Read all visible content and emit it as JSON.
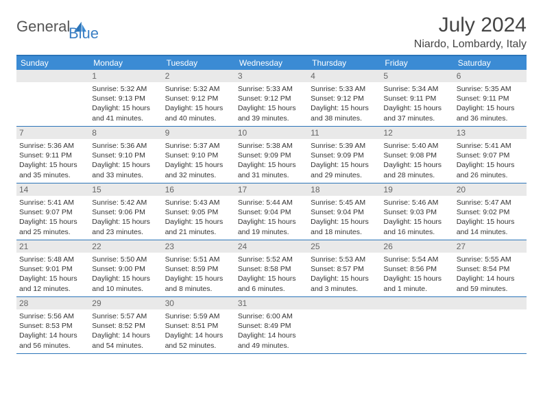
{
  "header": {
    "logo_general": "General",
    "logo_blue": "Blue",
    "month_title": "July 2024",
    "location": "Niardo, Lombardy, Italy"
  },
  "colors": {
    "header_bar": "#3b8bd4",
    "border": "#2a74b8",
    "day_num_bg": "#e9e9e9",
    "text": "#333333"
  },
  "weekdays": [
    "Sunday",
    "Monday",
    "Tuesday",
    "Wednesday",
    "Thursday",
    "Friday",
    "Saturday"
  ],
  "weeks": [
    [
      null,
      {
        "n": "1",
        "sr": "Sunrise: 5:32 AM",
        "ss": "Sunset: 9:13 PM",
        "d1": "Daylight: 15 hours",
        "d2": "and 41 minutes."
      },
      {
        "n": "2",
        "sr": "Sunrise: 5:32 AM",
        "ss": "Sunset: 9:12 PM",
        "d1": "Daylight: 15 hours",
        "d2": "and 40 minutes."
      },
      {
        "n": "3",
        "sr": "Sunrise: 5:33 AM",
        "ss": "Sunset: 9:12 PM",
        "d1": "Daylight: 15 hours",
        "d2": "and 39 minutes."
      },
      {
        "n": "4",
        "sr": "Sunrise: 5:33 AM",
        "ss": "Sunset: 9:12 PM",
        "d1": "Daylight: 15 hours",
        "d2": "and 38 minutes."
      },
      {
        "n": "5",
        "sr": "Sunrise: 5:34 AM",
        "ss": "Sunset: 9:11 PM",
        "d1": "Daylight: 15 hours",
        "d2": "and 37 minutes."
      },
      {
        "n": "6",
        "sr": "Sunrise: 5:35 AM",
        "ss": "Sunset: 9:11 PM",
        "d1": "Daylight: 15 hours",
        "d2": "and 36 minutes."
      }
    ],
    [
      {
        "n": "7",
        "sr": "Sunrise: 5:36 AM",
        "ss": "Sunset: 9:11 PM",
        "d1": "Daylight: 15 hours",
        "d2": "and 35 minutes."
      },
      {
        "n": "8",
        "sr": "Sunrise: 5:36 AM",
        "ss": "Sunset: 9:10 PM",
        "d1": "Daylight: 15 hours",
        "d2": "and 33 minutes."
      },
      {
        "n": "9",
        "sr": "Sunrise: 5:37 AM",
        "ss": "Sunset: 9:10 PM",
        "d1": "Daylight: 15 hours",
        "d2": "and 32 minutes."
      },
      {
        "n": "10",
        "sr": "Sunrise: 5:38 AM",
        "ss": "Sunset: 9:09 PM",
        "d1": "Daylight: 15 hours",
        "d2": "and 31 minutes."
      },
      {
        "n": "11",
        "sr": "Sunrise: 5:39 AM",
        "ss": "Sunset: 9:09 PM",
        "d1": "Daylight: 15 hours",
        "d2": "and 29 minutes."
      },
      {
        "n": "12",
        "sr": "Sunrise: 5:40 AM",
        "ss": "Sunset: 9:08 PM",
        "d1": "Daylight: 15 hours",
        "d2": "and 28 minutes."
      },
      {
        "n": "13",
        "sr": "Sunrise: 5:41 AM",
        "ss": "Sunset: 9:07 PM",
        "d1": "Daylight: 15 hours",
        "d2": "and 26 minutes."
      }
    ],
    [
      {
        "n": "14",
        "sr": "Sunrise: 5:41 AM",
        "ss": "Sunset: 9:07 PM",
        "d1": "Daylight: 15 hours",
        "d2": "and 25 minutes."
      },
      {
        "n": "15",
        "sr": "Sunrise: 5:42 AM",
        "ss": "Sunset: 9:06 PM",
        "d1": "Daylight: 15 hours",
        "d2": "and 23 minutes."
      },
      {
        "n": "16",
        "sr": "Sunrise: 5:43 AM",
        "ss": "Sunset: 9:05 PM",
        "d1": "Daylight: 15 hours",
        "d2": "and 21 minutes."
      },
      {
        "n": "17",
        "sr": "Sunrise: 5:44 AM",
        "ss": "Sunset: 9:04 PM",
        "d1": "Daylight: 15 hours",
        "d2": "and 19 minutes."
      },
      {
        "n": "18",
        "sr": "Sunrise: 5:45 AM",
        "ss": "Sunset: 9:04 PM",
        "d1": "Daylight: 15 hours",
        "d2": "and 18 minutes."
      },
      {
        "n": "19",
        "sr": "Sunrise: 5:46 AM",
        "ss": "Sunset: 9:03 PM",
        "d1": "Daylight: 15 hours",
        "d2": "and 16 minutes."
      },
      {
        "n": "20",
        "sr": "Sunrise: 5:47 AM",
        "ss": "Sunset: 9:02 PM",
        "d1": "Daylight: 15 hours",
        "d2": "and 14 minutes."
      }
    ],
    [
      {
        "n": "21",
        "sr": "Sunrise: 5:48 AM",
        "ss": "Sunset: 9:01 PM",
        "d1": "Daylight: 15 hours",
        "d2": "and 12 minutes."
      },
      {
        "n": "22",
        "sr": "Sunrise: 5:50 AM",
        "ss": "Sunset: 9:00 PM",
        "d1": "Daylight: 15 hours",
        "d2": "and 10 minutes."
      },
      {
        "n": "23",
        "sr": "Sunrise: 5:51 AM",
        "ss": "Sunset: 8:59 PM",
        "d1": "Daylight: 15 hours",
        "d2": "and 8 minutes."
      },
      {
        "n": "24",
        "sr": "Sunrise: 5:52 AM",
        "ss": "Sunset: 8:58 PM",
        "d1": "Daylight: 15 hours",
        "d2": "and 6 minutes."
      },
      {
        "n": "25",
        "sr": "Sunrise: 5:53 AM",
        "ss": "Sunset: 8:57 PM",
        "d1": "Daylight: 15 hours",
        "d2": "and 3 minutes."
      },
      {
        "n": "26",
        "sr": "Sunrise: 5:54 AM",
        "ss": "Sunset: 8:56 PM",
        "d1": "Daylight: 15 hours",
        "d2": "and 1 minute."
      },
      {
        "n": "27",
        "sr": "Sunrise: 5:55 AM",
        "ss": "Sunset: 8:54 PM",
        "d1": "Daylight: 14 hours",
        "d2": "and 59 minutes."
      }
    ],
    [
      {
        "n": "28",
        "sr": "Sunrise: 5:56 AM",
        "ss": "Sunset: 8:53 PM",
        "d1": "Daylight: 14 hours",
        "d2": "and 56 minutes."
      },
      {
        "n": "29",
        "sr": "Sunrise: 5:57 AM",
        "ss": "Sunset: 8:52 PM",
        "d1": "Daylight: 14 hours",
        "d2": "and 54 minutes."
      },
      {
        "n": "30",
        "sr": "Sunrise: 5:59 AM",
        "ss": "Sunset: 8:51 PM",
        "d1": "Daylight: 14 hours",
        "d2": "and 52 minutes."
      },
      {
        "n": "31",
        "sr": "Sunrise: 6:00 AM",
        "ss": "Sunset: 8:49 PM",
        "d1": "Daylight: 14 hours",
        "d2": "and 49 minutes."
      },
      null,
      null,
      null
    ]
  ]
}
